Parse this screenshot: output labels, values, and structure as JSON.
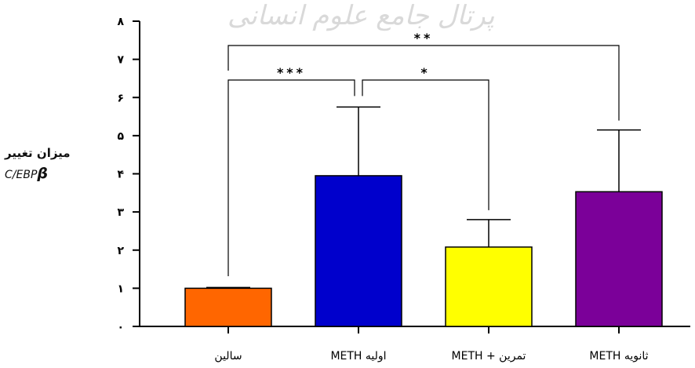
{
  "watermark": "پرتال جامع علوم انسانی",
  "chart_data": {
    "type": "bar",
    "title": "",
    "ylabel_line1": "میزان تغییر",
    "ylabel_line2": "C/EBP",
    "ylabel_symbol": "β",
    "ylim": [
      0,
      8
    ],
    "yticks": [
      "۰",
      "۱",
      "۲",
      "۳",
      "۴",
      "۵",
      "۶",
      "۷",
      "۸"
    ],
    "categories": [
      "سالین",
      "METH اولیه",
      "METH + تمرین",
      "METH ثانویه"
    ],
    "values": [
      1.0,
      3.95,
      2.08,
      3.53
    ],
    "errors": [
      0.02,
      1.8,
      0.72,
      1.62
    ],
    "colors": [
      "#ff6600",
      "#0000cc",
      "#ffff00",
      "#7b0099"
    ],
    "significance": [
      {
        "label": "***",
        "from": 0,
        "to": 1
      },
      {
        "label": "*",
        "from": 1,
        "to": 2
      },
      {
        "label": "**",
        "from": 0,
        "to": 3
      }
    ]
  }
}
